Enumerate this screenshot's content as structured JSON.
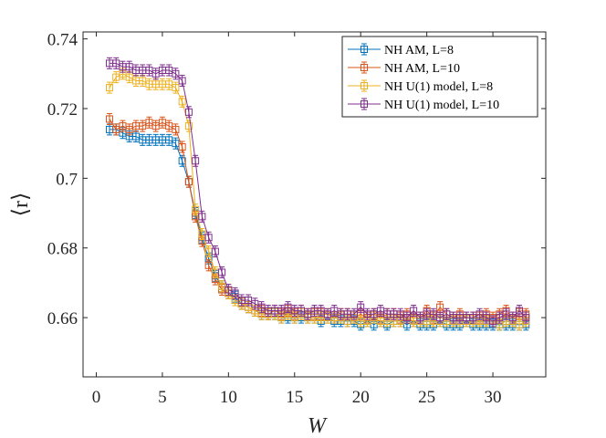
{
  "chart_data": {
    "type": "line",
    "xlabel": "W",
    "ylabel": "⟨r⟩",
    "xlim": [
      -1,
      34
    ],
    "ylim": [
      0.643,
      0.742
    ],
    "xticks": [
      0,
      5,
      10,
      15,
      20,
      25,
      30
    ],
    "yticks": [
      0.66,
      0.68,
      0.7,
      0.72,
      0.74
    ],
    "ytick_labels": [
      "0.66",
      "0.68",
      "0.7",
      "0.72",
      "0.74"
    ],
    "grid": false,
    "legend_position": "top-right",
    "markers": "square-with-errorbars",
    "x": [
      1,
      1.5,
      2,
      2.5,
      3,
      3.5,
      4,
      4.5,
      5,
      5.5,
      6,
      6.5,
      7,
      7.5,
      8,
      8.5,
      9,
      9.5,
      10,
      10.5,
      11,
      11.5,
      12,
      12.5,
      13,
      13.5,
      14,
      14.5,
      15,
      15.5,
      16,
      16.5,
      17,
      17.5,
      18,
      18.5,
      19,
      19.5,
      20,
      20.5,
      21,
      21.5,
      22,
      22.5,
      23,
      23.5,
      24,
      24.5,
      25,
      25.5,
      26,
      26.5,
      27,
      27.5,
      28,
      28.5,
      29,
      29.5,
      30,
      30.5,
      31,
      31.5,
      32,
      32.5
    ],
    "series": [
      {
        "name": "NH AM, L=8",
        "color": "#0072BD",
        "values": [
          0.714,
          0.714,
          0.713,
          0.712,
          0.712,
          0.711,
          0.711,
          0.711,
          0.711,
          0.711,
          0.71,
          0.705,
          0.699,
          0.69,
          0.683,
          0.677,
          0.672,
          0.669,
          0.667,
          0.666,
          0.664,
          0.663,
          0.662,
          0.661,
          0.661,
          0.661,
          0.66,
          0.66,
          0.66,
          0.66,
          0.66,
          0.66,
          0.659,
          0.66,
          0.659,
          0.659,
          0.659,
          0.659,
          0.658,
          0.659,
          0.658,
          0.659,
          0.658,
          0.659,
          0.659,
          0.658,
          0.659,
          0.658,
          0.658,
          0.658,
          0.659,
          0.658,
          0.658,
          0.658,
          0.659,
          0.658,
          0.658,
          0.658,
          0.658,
          0.658,
          0.658,
          0.658,
          0.658,
          0.658
        ]
      },
      {
        "name": "NH AM, L=10",
        "color": "#D95319",
        "values": [
          0.717,
          0.714,
          0.715,
          0.714,
          0.715,
          0.715,
          0.716,
          0.715,
          0.716,
          0.715,
          0.714,
          0.709,
          0.699,
          0.689,
          0.682,
          0.675,
          0.671,
          0.668,
          0.667,
          0.665,
          0.664,
          0.663,
          0.662,
          0.662,
          0.661,
          0.662,
          0.661,
          0.662,
          0.661,
          0.662,
          0.661,
          0.661,
          0.661,
          0.661,
          0.66,
          0.661,
          0.661,
          0.66,
          0.661,
          0.66,
          0.661,
          0.66,
          0.661,
          0.661,
          0.66,
          0.661,
          0.66,
          0.66,
          0.662,
          0.66,
          0.663,
          0.661,
          0.66,
          0.661,
          0.66,
          0.66,
          0.66,
          0.661,
          0.66,
          0.661,
          0.662,
          0.66,
          0.661,
          0.661
        ]
      },
      {
        "name": "NH U(1) model, L=8",
        "color": "#EDB120",
        "values": [
          0.726,
          0.729,
          0.73,
          0.729,
          0.728,
          0.728,
          0.727,
          0.727,
          0.727,
          0.727,
          0.726,
          0.722,
          0.715,
          0.691,
          0.684,
          0.679,
          0.673,
          0.669,
          0.667,
          0.665,
          0.664,
          0.663,
          0.662,
          0.661,
          0.661,
          0.661,
          0.66,
          0.661,
          0.66,
          0.661,
          0.66,
          0.66,
          0.66,
          0.66,
          0.66,
          0.66,
          0.659,
          0.66,
          0.659,
          0.659,
          0.66,
          0.659,
          0.659,
          0.659,
          0.659,
          0.66,
          0.659,
          0.659,
          0.659,
          0.659,
          0.659,
          0.659,
          0.659,
          0.659,
          0.659,
          0.659,
          0.659,
          0.659,
          0.659,
          0.658,
          0.659,
          0.659,
          0.658,
          0.659
        ]
      },
      {
        "name": "NH U(1) model, L=10",
        "color": "#7E2F8E",
        "values": [
          0.733,
          0.733,
          0.732,
          0.732,
          0.731,
          0.731,
          0.731,
          0.73,
          0.731,
          0.731,
          0.73,
          0.728,
          0.719,
          0.705,
          0.689,
          0.683,
          0.679,
          0.673,
          0.668,
          0.667,
          0.665,
          0.665,
          0.664,
          0.663,
          0.662,
          0.662,
          0.662,
          0.663,
          0.662,
          0.662,
          0.661,
          0.662,
          0.662,
          0.661,
          0.662,
          0.661,
          0.661,
          0.661,
          0.663,
          0.661,
          0.661,
          0.662,
          0.661,
          0.661,
          0.661,
          0.66,
          0.662,
          0.66,
          0.661,
          0.661,
          0.66,
          0.661,
          0.66,
          0.66,
          0.66,
          0.66,
          0.661,
          0.66,
          0.659,
          0.66,
          0.661,
          0.66,
          0.662,
          0.66
        ]
      }
    ]
  }
}
